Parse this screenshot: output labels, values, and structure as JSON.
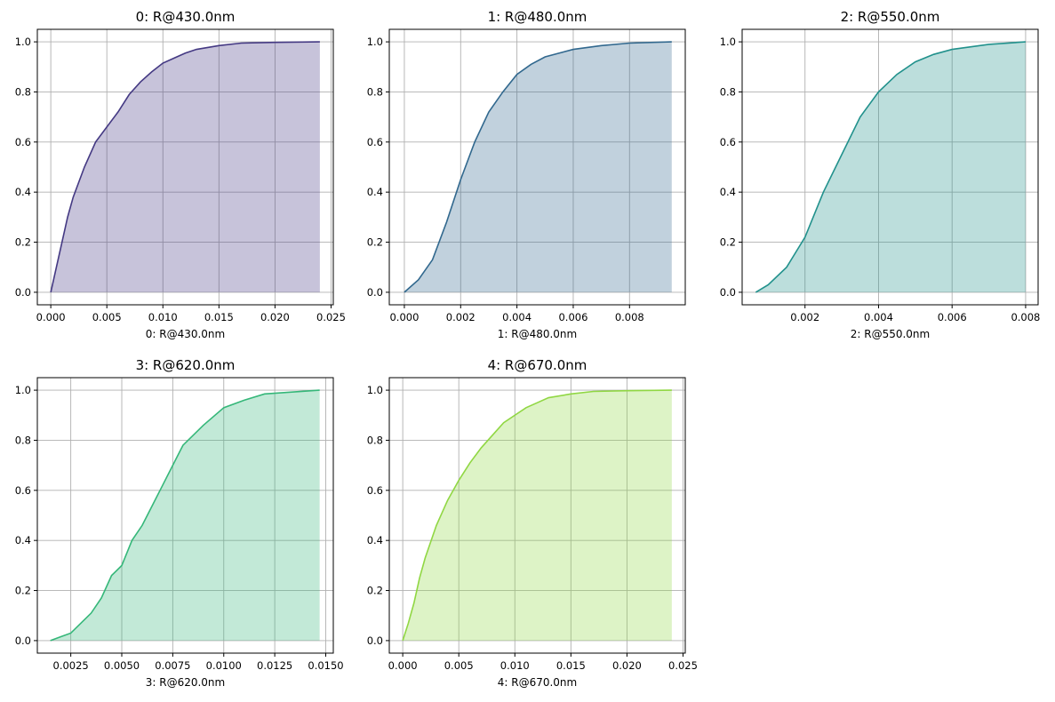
{
  "chart_data": [
    {
      "type": "area",
      "title": "0: R@430.0nm",
      "xlabel": "0: R@430.0nm",
      "ylabel": "",
      "color": "#443983",
      "xlim": [
        -0.0012,
        0.0252
      ],
      "ylim": [
        -0.05,
        1.05
      ],
      "grid": true,
      "xticks": [
        0,
        0.005,
        0.01,
        0.015,
        0.02,
        0.025
      ],
      "xtick_labels": [
        "0.000",
        "0.005",
        "0.010",
        "0.015",
        "0.020",
        "0.025"
      ],
      "yticks": [
        0,
        0.2,
        0.4,
        0.6,
        0.8,
        1.0
      ],
      "ytick_labels": [
        "0.0",
        "0.2",
        "0.4",
        "0.6",
        "0.8",
        "1.0"
      ],
      "x": [
        0,
        0.0005,
        0.001,
        0.0015,
        0.002,
        0.003,
        0.004,
        0.005,
        0.006,
        0.007,
        0.008,
        0.009,
        0.01,
        0.011,
        0.012,
        0.013,
        0.015,
        0.017,
        0.02,
        0.024
      ],
      "y": [
        0,
        0.1,
        0.2,
        0.3,
        0.38,
        0.5,
        0.6,
        0.66,
        0.72,
        0.79,
        0.84,
        0.88,
        0.915,
        0.935,
        0.955,
        0.97,
        0.985,
        0.995,
        0.998,
        1.0
      ]
    },
    {
      "type": "area",
      "title": "1: R@480.0nm",
      "xlabel": "1: R@480.0nm",
      "ylabel": "",
      "color": "#31688e",
      "xlim": [
        -0.000535,
        0.00998
      ],
      "ylim": [
        -0.05,
        1.05
      ],
      "grid": true,
      "xticks": [
        0,
        0.002,
        0.004,
        0.006,
        0.008
      ],
      "xtick_labels": [
        "0.000",
        "0.002",
        "0.004",
        "0.006",
        "0.008"
      ],
      "yticks": [
        0,
        0.2,
        0.4,
        0.6,
        0.8,
        1.0
      ],
      "ytick_labels": [
        "0.0",
        "0.2",
        "0.4",
        "0.6",
        "0.8",
        "1.0"
      ],
      "x": [
        0,
        0.0005,
        0.001,
        0.0015,
        0.002,
        0.0025,
        0.003,
        0.0035,
        0.004,
        0.0045,
        0.005,
        0.006,
        0.007,
        0.008,
        0.0095
      ],
      "y": [
        0,
        0.05,
        0.13,
        0.28,
        0.45,
        0.6,
        0.72,
        0.8,
        0.87,
        0.91,
        0.94,
        0.97,
        0.985,
        0.995,
        1.0
      ]
    },
    {
      "type": "area",
      "title": "2: R@550.0nm",
      "xlabel": "2: R@550.0nm",
      "ylabel": "",
      "color": "#21918c",
      "xlim": [
        0.00029,
        0.00834
      ],
      "ylim": [
        -0.05,
        1.05
      ],
      "grid": true,
      "xticks": [
        0.002,
        0.004,
        0.006,
        0.008
      ],
      "xtick_labels": [
        "0.002",
        "0.004",
        "0.006",
        "0.008"
      ],
      "yticks": [
        0,
        0.2,
        0.4,
        0.6,
        0.8,
        1.0
      ],
      "ytick_labels": [
        "0.0",
        "0.2",
        "0.4",
        "0.6",
        "0.8",
        "1.0"
      ],
      "x": [
        0.00066,
        0.001,
        0.0015,
        0.002,
        0.0025,
        0.003,
        0.0035,
        0.004,
        0.0045,
        0.005,
        0.0055,
        0.006,
        0.007,
        0.008
      ],
      "y": [
        0,
        0.03,
        0.1,
        0.22,
        0.4,
        0.55,
        0.7,
        0.8,
        0.87,
        0.92,
        0.95,
        0.97,
        0.99,
        1.0
      ]
    },
    {
      "type": "area",
      "title": "3: R@620.0nm",
      "xlabel": "3: R@620.0nm",
      "ylabel": "",
      "color": "#35b779",
      "xlim": [
        0.00086,
        0.01537
      ],
      "ylim": [
        -0.05,
        1.05
      ],
      "grid": true,
      "xticks": [
        0.0025,
        0.005,
        0.0075,
        0.01,
        0.0125,
        0.015
      ],
      "xtick_labels": [
        "0.0025",
        "0.0050",
        "0.0075",
        "0.0100",
        "0.0125",
        "0.0150"
      ],
      "yticks": [
        0,
        0.2,
        0.4,
        0.6,
        0.8,
        1.0
      ],
      "ytick_labels": [
        "0.0",
        "0.2",
        "0.4",
        "0.6",
        "0.8",
        "1.0"
      ],
      "x": [
        0.0015,
        0.002,
        0.0025,
        0.003,
        0.0035,
        0.004,
        0.0045,
        0.005,
        0.0055,
        0.006,
        0.0065,
        0.007,
        0.0075,
        0.008,
        0.009,
        0.01,
        0.011,
        0.012,
        0.0147
      ],
      "y": [
        0,
        0.015,
        0.03,
        0.07,
        0.11,
        0.17,
        0.26,
        0.3,
        0.4,
        0.46,
        0.54,
        0.62,
        0.7,
        0.78,
        0.86,
        0.93,
        0.96,
        0.985,
        1.0
      ]
    },
    {
      "type": "area",
      "title": "4: R@670.0nm",
      "xlabel": "4: R@670.0nm",
      "ylabel": "",
      "color": "#90d743",
      "xlim": [
        -0.0012,
        0.0252
      ],
      "ylim": [
        -0.05,
        1.05
      ],
      "grid": true,
      "xticks": [
        0,
        0.005,
        0.01,
        0.015,
        0.02,
        0.025
      ],
      "xtick_labels": [
        "0.000",
        "0.005",
        "0.010",
        "0.015",
        "0.020",
        "0.025"
      ],
      "yticks": [
        0,
        0.2,
        0.4,
        0.6,
        0.8,
        1.0
      ],
      "ytick_labels": [
        "0.0",
        "0.2",
        "0.4",
        "0.6",
        "0.8",
        "1.0"
      ],
      "x": [
        0,
        0.0005,
        0.001,
        0.0015,
        0.002,
        0.003,
        0.004,
        0.005,
        0.006,
        0.007,
        0.008,
        0.009,
        0.01,
        0.011,
        0.012,
        0.013,
        0.015,
        0.017,
        0.02,
        0.024
      ],
      "y": [
        0,
        0.07,
        0.15,
        0.25,
        0.33,
        0.46,
        0.56,
        0.64,
        0.71,
        0.77,
        0.82,
        0.87,
        0.9,
        0.93,
        0.95,
        0.97,
        0.985,
        0.995,
        0.998,
        1.0
      ]
    }
  ]
}
